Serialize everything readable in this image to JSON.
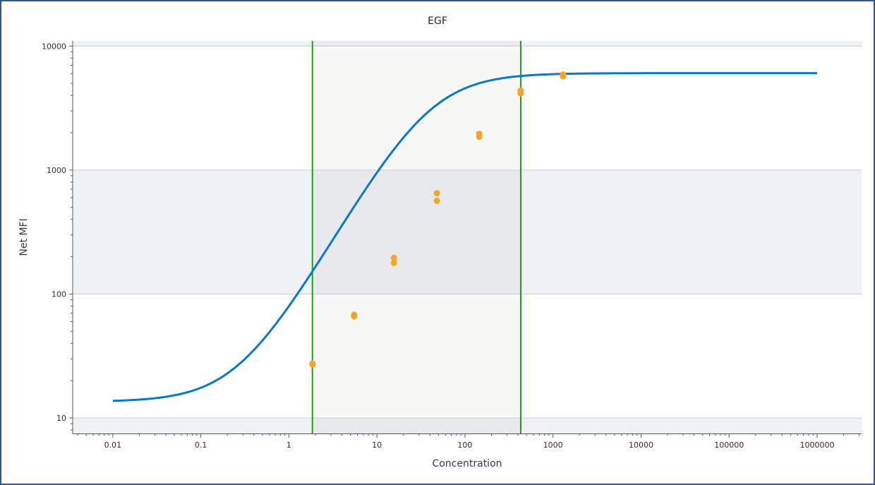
{
  "chart_data": {
    "type": "scatter",
    "title": "EGF",
    "xlabel": "Concentration",
    "ylabel": "Net MFI",
    "x_scale": "log",
    "y_scale": "log",
    "xlim": [
      0.0035,
      3200000
    ],
    "ylim": [
      7.5,
      11000
    ],
    "x_ticks": [
      0.01,
      0.1,
      1,
      10,
      100,
      1000,
      10000,
      100000,
      1000000
    ],
    "x_tick_labels": [
      "0.01",
      "0.1",
      "1",
      "10",
      "100",
      "1000",
      "10000",
      "100000",
      "1000000"
    ],
    "y_ticks": [
      10,
      100,
      1000,
      10000
    ],
    "y_tick_labels": [
      "10",
      "100",
      "1000",
      "10000"
    ],
    "y_bands": [
      [
        7.5,
        10
      ],
      [
        100,
        1000
      ],
      [
        10000,
        11000
      ]
    ],
    "range_limits": [
      1.85,
      430
    ],
    "curve": {
      "model": "4PL",
      "bottom": 13.5,
      "top": 6050,
      "ec50": 40,
      "hill": 1.22,
      "x_range": [
        0.01,
        1000000
      ]
    },
    "series": [
      {
        "points": [
          {
            "x": 1.85,
            "y": 27.5
          },
          {
            "x": 1.85,
            "y": 27
          },
          {
            "x": 5.5,
            "y": 68
          },
          {
            "x": 5.5,
            "y": 66
          },
          {
            "x": 15.6,
            "y": 196
          },
          {
            "x": 15.6,
            "y": 178
          },
          {
            "x": 48,
            "y": 650
          },
          {
            "x": 48,
            "y": 565
          },
          {
            "x": 145,
            "y": 1960
          },
          {
            "x": 145,
            "y": 1860
          },
          {
            "x": 430,
            "y": 4380
          },
          {
            "x": 430,
            "y": 4150
          },
          {
            "x": 1300,
            "y": 5900
          },
          {
            "x": 1300,
            "y": 5700
          }
        ]
      }
    ],
    "grid": "horizontal",
    "colors": {
      "curve": "#0a78c8",
      "points": "#f5a623",
      "limit_lines": "#1aa31a",
      "band": "#eef1f5",
      "shaded_range": "#f6f6f4"
    }
  }
}
